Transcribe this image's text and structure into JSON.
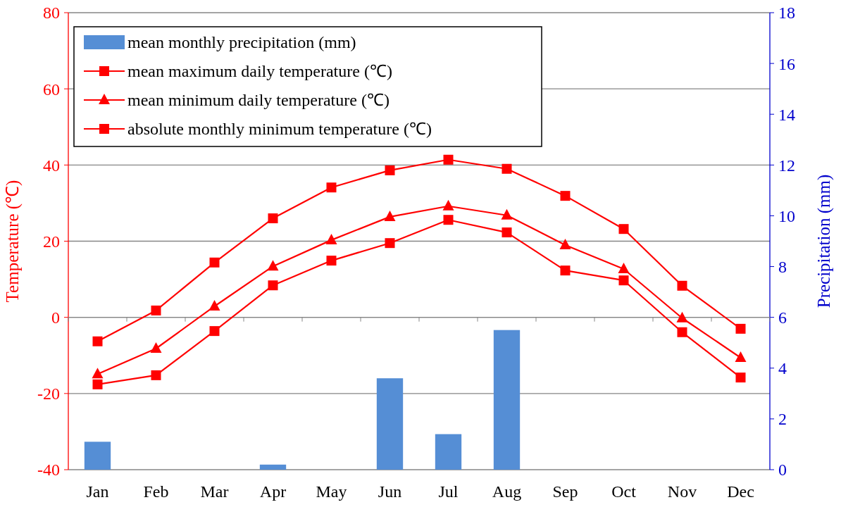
{
  "chart_data": {
    "type": "line",
    "xlabel": null,
    "ylabel": "Temperature (℃)",
    "y2label": "Precipitation (mm)",
    "categories": [
      "Jan",
      "Feb",
      "Mar",
      "Apr",
      "May",
      "Jun",
      "Jul",
      "Aug",
      "Sep",
      "Oct",
      "Nov",
      "Dec"
    ],
    "series": [
      {
        "name": "mean monthly precipitation (mm)",
        "type": "bar",
        "axis": "y2",
        "color": "#558ed5",
        "values": [
          1.1,
          0,
          0,
          0.2,
          0,
          3.6,
          1.4,
          5.5,
          0,
          0,
          0,
          0
        ]
      },
      {
        "name": "mean maximum daily temperature (℃)",
        "color": "#ff0000",
        "marker": "square",
        "values": [
          -6.3,
          1.8,
          14.4,
          26,
          34.1,
          38.6,
          41.4,
          39,
          31.9,
          23.2,
          8.3,
          -3
        ]
      },
      {
        "name": "mean minimum daily temperature (℃)",
        "color": "#ff0000",
        "marker": "triangle",
        "values": [
          -14.9,
          -8.2,
          2.9,
          13.4,
          20.3,
          26.4,
          29.2,
          26.8,
          19,
          12.7,
          -0.2,
          -10.6
        ]
      },
      {
        "name": "absolute monthly minimum temperature (℃)",
        "color": "#ff0000",
        "marker": "square",
        "values": [
          -17.6,
          -15.2,
          -3.6,
          8.4,
          14.9,
          19.5,
          25.6,
          22.3,
          12.3,
          9.7,
          -3.9,
          -15.8
        ]
      }
    ],
    "ylim": [
      -40,
      80
    ],
    "yticks": [
      -40,
      -20,
      0,
      20,
      40,
      60,
      80
    ],
    "y2lim": [
      0,
      18
    ],
    "y2ticks": [
      0,
      2,
      4,
      6,
      8,
      10,
      12,
      14,
      16,
      18
    ],
    "grid": "y",
    "legend": "top left"
  }
}
